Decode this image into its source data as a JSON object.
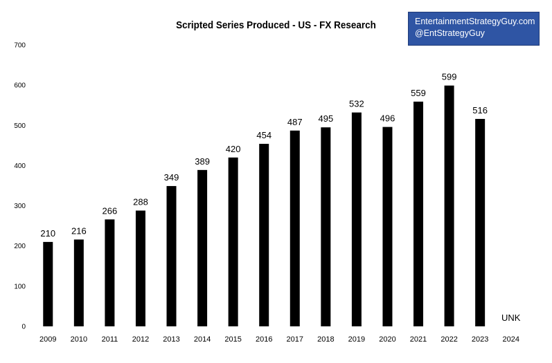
{
  "chart_data": {
    "type": "bar",
    "title": "Scripted Series Produced - US - FX Research",
    "xlabel": "",
    "ylabel": "",
    "ylim": [
      0,
      700
    ],
    "yticks": [
      0,
      100,
      200,
      300,
      400,
      500,
      600,
      700
    ],
    "categories": [
      "2009",
      "2010",
      "2011",
      "2012",
      "2013",
      "2014",
      "2015",
      "2016",
      "2017",
      "2018",
      "2019",
      "2020",
      "2021",
      "2022",
      "2023",
      "2024"
    ],
    "values": [
      210,
      216,
      266,
      288,
      349,
      389,
      420,
      454,
      487,
      495,
      532,
      496,
      559,
      599,
      516,
      null
    ],
    "data_labels": [
      "210",
      "216",
      "266",
      "288",
      "349",
      "389",
      "420",
      "454",
      "487",
      "495",
      "532",
      "496",
      "559",
      "599",
      "516",
      "UNK"
    ],
    "bar_color": "#000000",
    "grid": false,
    "legend": "none"
  },
  "watermark": {
    "line1": "EntertainmentStrategyGuy.com",
    "line2": "@EntStrategyGuy",
    "background": "#2f55a4"
  }
}
